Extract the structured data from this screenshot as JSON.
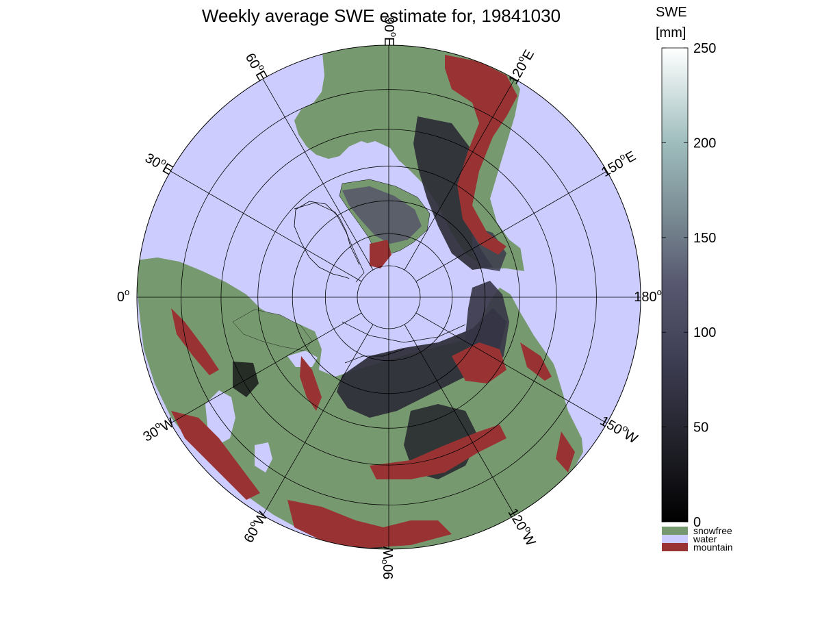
{
  "title": "Weekly average SWE estimate for, 19841030",
  "colorbar": {
    "title_line1": "SWE",
    "title_line2": "[mm]",
    "ticks": [
      {
        "value": 0,
        "label": "0"
      },
      {
        "value": 50,
        "label": "50"
      },
      {
        "value": 100,
        "label": "100"
      },
      {
        "value": 150,
        "label": "150"
      },
      {
        "value": 200,
        "label": "200"
      },
      {
        "value": 250,
        "label": "250"
      }
    ],
    "min": 0,
    "max": 250,
    "categories": [
      {
        "label": "snowfree",
        "color": "#77996f"
      },
      {
        "label": "water",
        "color": "#ccccff"
      },
      {
        "label": "mountain",
        "color": "#993333"
      }
    ]
  },
  "map": {
    "projection": "north polar stereographic",
    "background_color": "#ccccff",
    "land_color": "#77996f",
    "meridian_labels": [
      {
        "lon": 0,
        "deg": "0",
        "hemi": ""
      },
      {
        "lon": 30,
        "deg": "30",
        "hemi": "E"
      },
      {
        "lon": 60,
        "deg": "60",
        "hemi": "E"
      },
      {
        "lon": 90,
        "deg": "90",
        "hemi": "E"
      },
      {
        "lon": 120,
        "deg": "120",
        "hemi": "E"
      },
      {
        "lon": 150,
        "deg": "150",
        "hemi": "E"
      },
      {
        "lon": 180,
        "deg": "180",
        "hemi": "W"
      },
      {
        "lon": -150,
        "deg": "150",
        "hemi": "W"
      },
      {
        "lon": -120,
        "deg": "120",
        "hemi": "W"
      },
      {
        "lon": -90,
        "deg": "90",
        "hemi": "W"
      },
      {
        "lon": -60,
        "deg": "60",
        "hemi": "W"
      },
      {
        "lon": -30,
        "deg": "30",
        "hemi": "W"
      }
    ],
    "latitude_circles": [
      80,
      70,
      60,
      50,
      40,
      30
    ],
    "edge_latitude": 20
  }
}
